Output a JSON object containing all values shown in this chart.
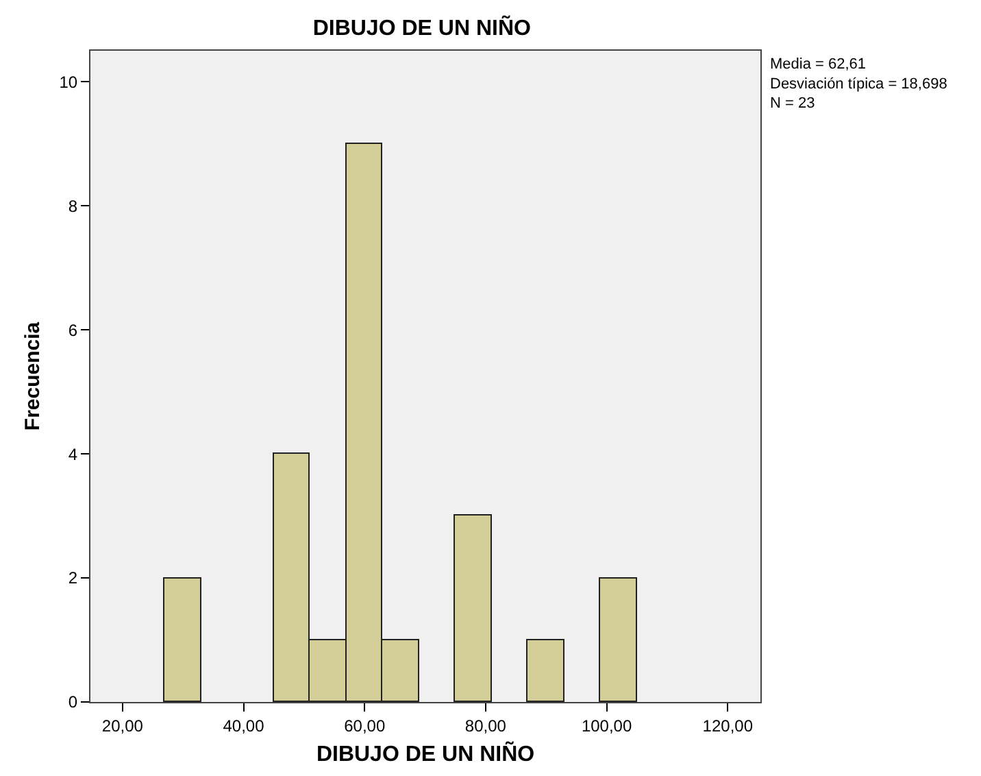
{
  "chart_data": {
    "type": "histogram",
    "title": "DIBUJO DE UN NIÑO",
    "xlabel": "DIBUJO DE UN NIÑO",
    "ylabel": "Frecuencia",
    "bins": [
      27,
      33,
      39,
      45,
      51,
      57,
      63,
      69,
      75,
      81,
      87,
      93,
      99,
      105
    ],
    "values": [
      2,
      0,
      0,
      4,
      1,
      9,
      1,
      0,
      3,
      0,
      1,
      0,
      2
    ],
    "color": "#d3ce97",
    "xlim": [
      14.7,
      125.4
    ],
    "xticks": [
      {
        "value": 20,
        "label": "20,00"
      },
      {
        "value": 40,
        "label": "40,00"
      },
      {
        "value": 60,
        "label": "60,00"
      },
      {
        "value": 80,
        "label": "80,00"
      },
      {
        "value": 100,
        "label": "100,00"
      },
      {
        "value": 120,
        "label": "120,00"
      }
    ],
    "ylim": [
      0,
      10.5
    ],
    "yticks": [
      0,
      2,
      4,
      6,
      8,
      10
    ],
    "grid": false,
    "annotations": [
      "Media = 62,61\nDesviación típica = 18,698\nN = 23"
    ]
  }
}
